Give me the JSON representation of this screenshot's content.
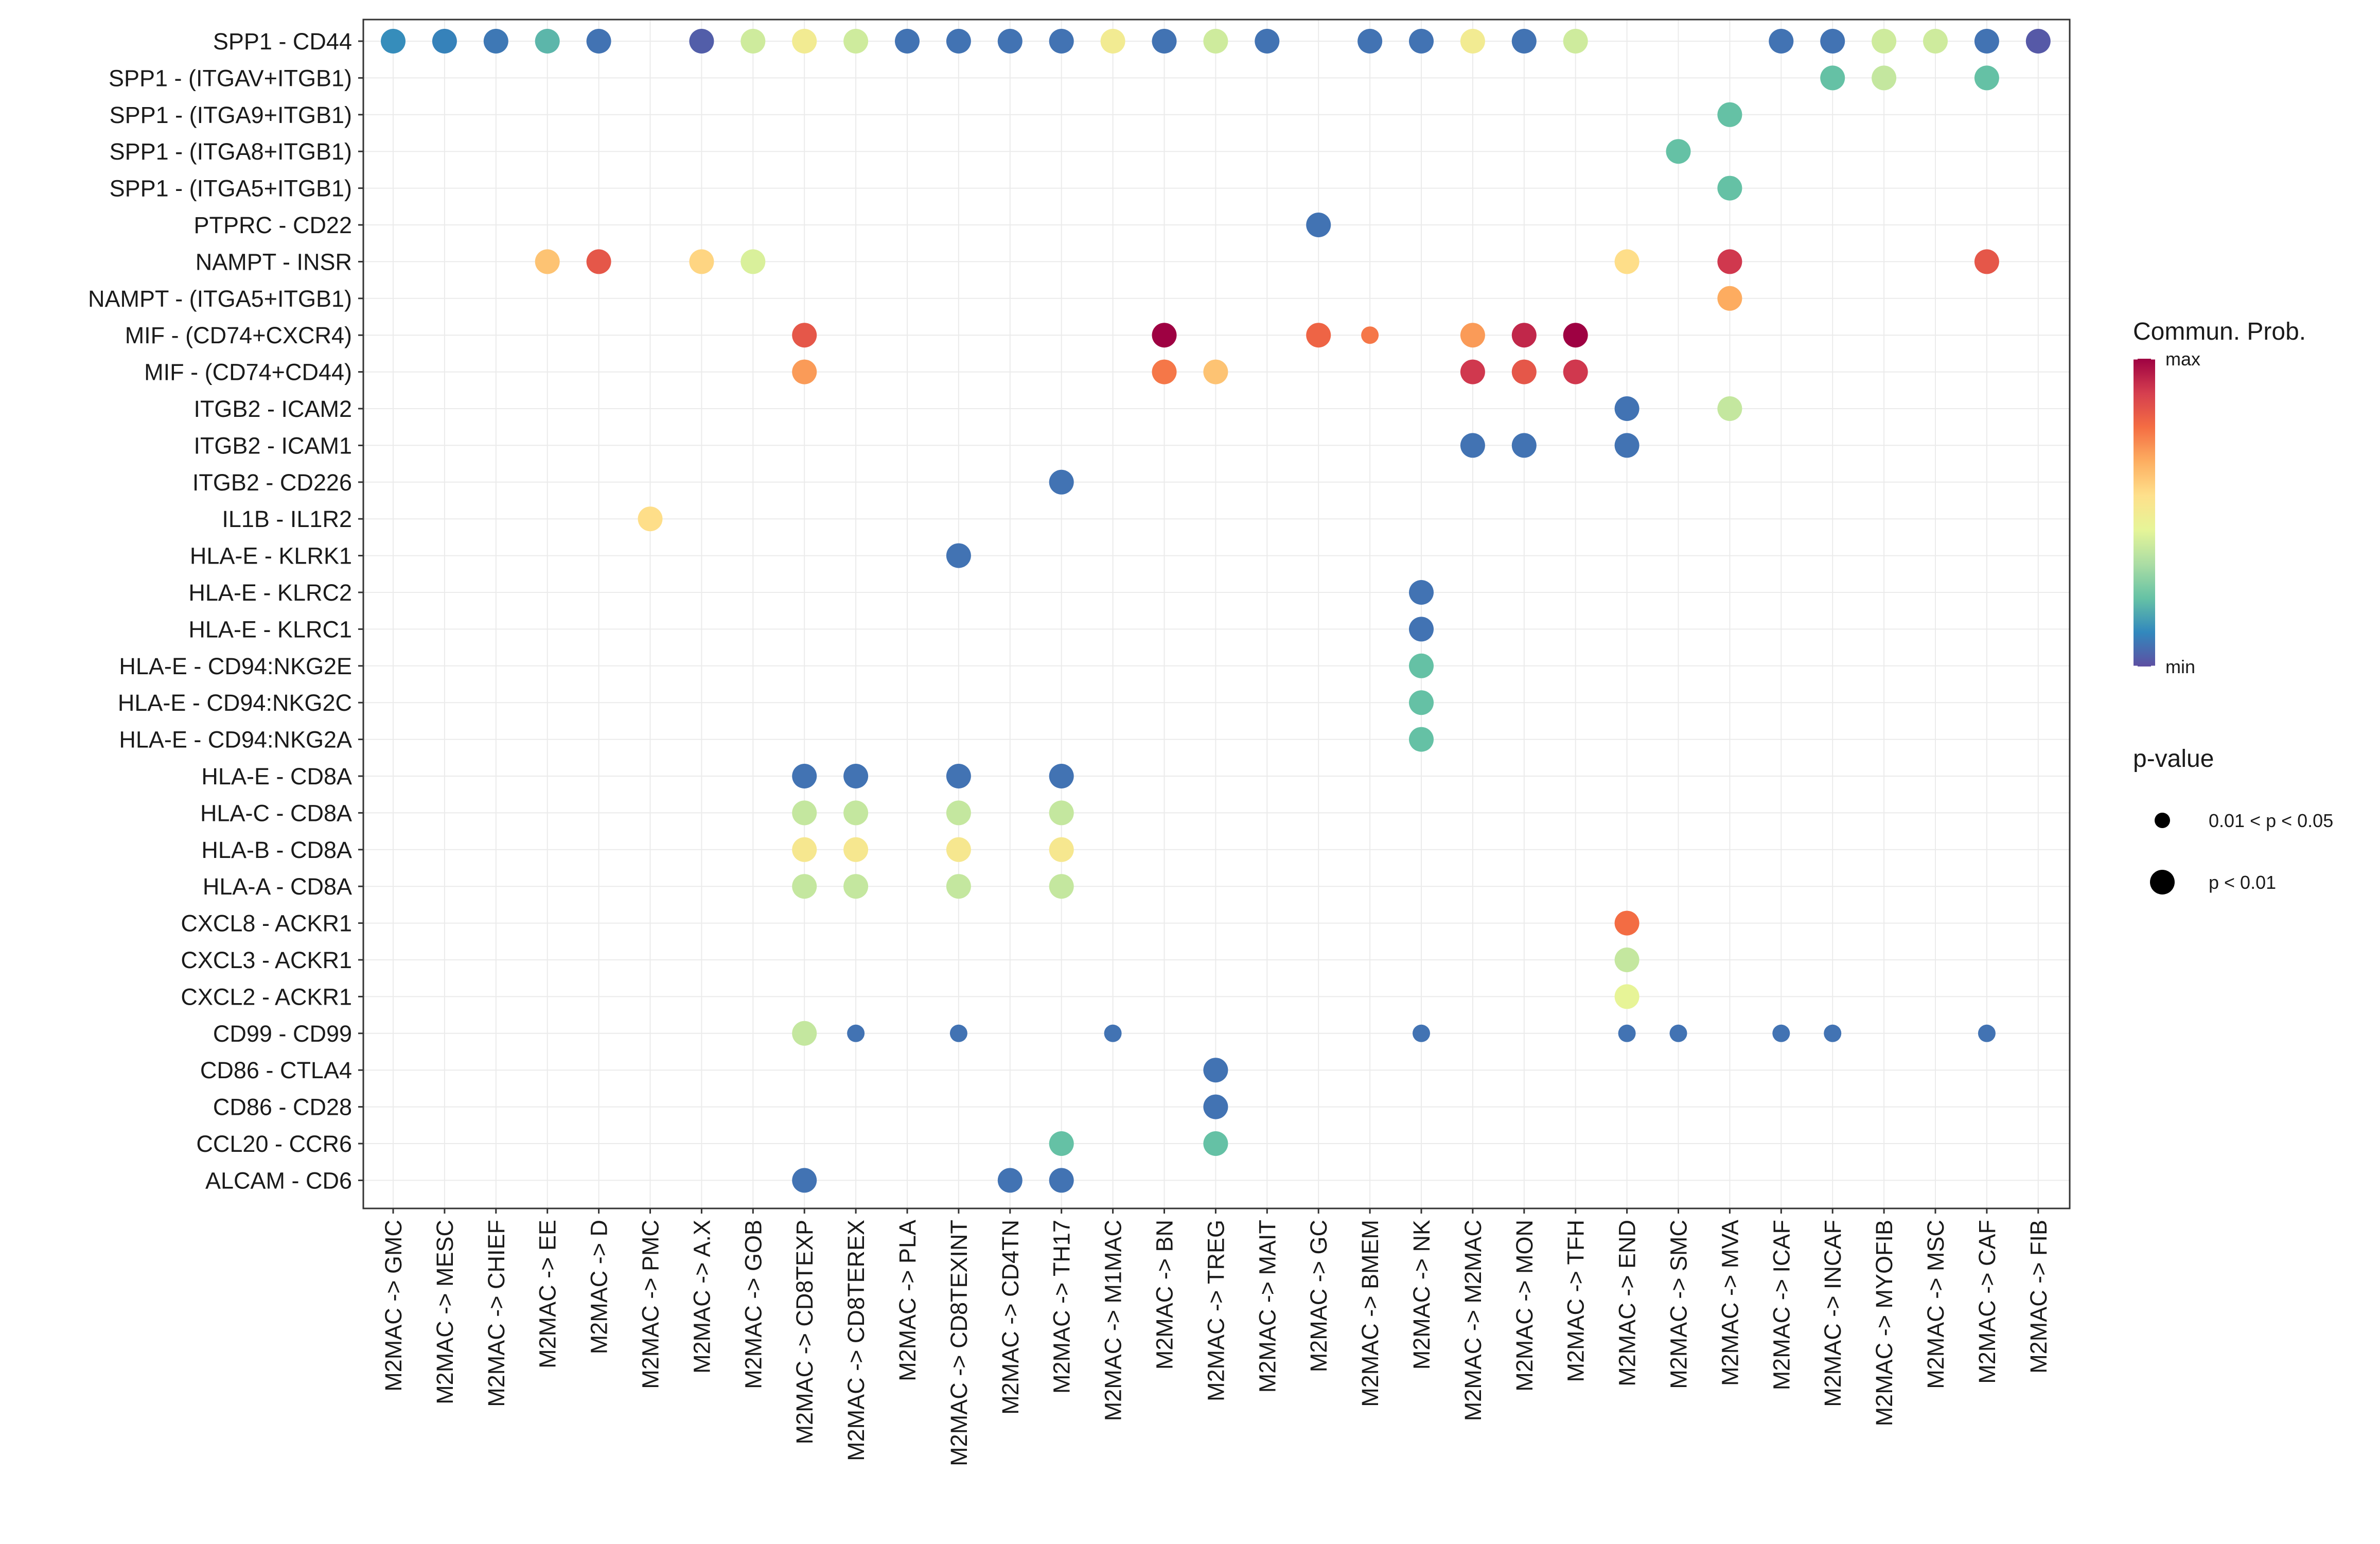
{
  "chart_data": {
    "type": "dot",
    "rows": [
      "SPP1 - CD44",
      "SPP1 - (ITGAV+ITGB1)",
      "SPP1 - (ITGA9+ITGB1)",
      "SPP1 - (ITGA8+ITGB1)",
      "SPP1 - (ITGA5+ITGB1)",
      "PTPRC - CD22",
      "NAMPT - INSR",
      "NAMPT - (ITGA5+ITGB1)",
      "MIF - (CD74+CXCR4)",
      "MIF - (CD74+CD44)",
      "ITGB2 - ICAM2",
      "ITGB2 - ICAM1",
      "ITGB2 - CD226",
      "IL1B - IL1R2",
      "HLA-E - KLRK1",
      "HLA-E - KLRC2",
      "HLA-E - KLRC1",
      "HLA-E - CD94:NKG2E",
      "HLA-E - CD94:NKG2C",
      "HLA-E - CD94:NKG2A",
      "HLA-E - CD8A",
      "HLA-C - CD8A",
      "HLA-B - CD8A",
      "HLA-A - CD8A",
      "CXCL8 - ACKR1",
      "CXCL3 - ACKR1",
      "CXCL2 - ACKR1",
      "CD99 - CD99",
      "CD86 - CTLA4",
      "CD86 - CD28",
      "CCL20 - CCR6",
      "ALCAM - CD6"
    ],
    "columns": [
      "M2MAC -> GMC",
      "M2MAC -> MESC",
      "M2MAC -> CHIEF",
      "M2MAC -> EE",
      "M2MAC -> D",
      "M2MAC -> PMC",
      "M2MAC -> A.X",
      "M2MAC -> GOB",
      "M2MAC -> CD8TEXP",
      "M2MAC -> CD8TEREX",
      "M2MAC -> PLA",
      "M2MAC -> CD8TEXINT",
      "M2MAC -> CD4TN",
      "M2MAC -> TH17",
      "M2MAC -> M1MAC",
      "M2MAC -> BN",
      "M2MAC -> TREG",
      "M2MAC -> MAIT",
      "M2MAC -> GC",
      "M2MAC -> BMEM",
      "M2MAC -> NK",
      "M2MAC -> M2MAC",
      "M2MAC -> MON",
      "M2MAC -> TFH",
      "M2MAC -> END",
      "M2MAC -> SMC",
      "M2MAC -> MVA",
      "M2MAC -> ICAF",
      "M2MAC -> INCAF",
      "M2MAC -> MYOFIB",
      "M2MAC -> MSC",
      "M2MAC -> CAF",
      "M2MAC -> FIB"
    ],
    "value_scale": "normalized communication probability, 0 = min, 1 = max",
    "pvalue_codes": {
      "1": "0.01 < p < 0.05",
      "2": "p < 0.01"
    },
    "points": [
      [
        0,
        0,
        0.12,
        2
      ],
      [
        0,
        1,
        0.1,
        2
      ],
      [
        0,
        2,
        0.08,
        2
      ],
      [
        0,
        3,
        0.2,
        2
      ],
      [
        0,
        4,
        0.07,
        2
      ],
      [
        0,
        6,
        0.03,
        2
      ],
      [
        0,
        7,
        0.4,
        2
      ],
      [
        0,
        8,
        0.5,
        2
      ],
      [
        0,
        9,
        0.4,
        2
      ],
      [
        0,
        10,
        0.07,
        2
      ],
      [
        0,
        11,
        0.07,
        2
      ],
      [
        0,
        12,
        0.07,
        2
      ],
      [
        0,
        13,
        0.07,
        2
      ],
      [
        0,
        14,
        0.5,
        2
      ],
      [
        0,
        15,
        0.07,
        2
      ],
      [
        0,
        16,
        0.4,
        2
      ],
      [
        0,
        17,
        0.07,
        2
      ],
      [
        0,
        19,
        0.07,
        2
      ],
      [
        0,
        20,
        0.07,
        2
      ],
      [
        0,
        21,
        0.5,
        2
      ],
      [
        0,
        22,
        0.07,
        2
      ],
      [
        0,
        23,
        0.4,
        2
      ],
      [
        0,
        27,
        0.07,
        2
      ],
      [
        0,
        28,
        0.07,
        2
      ],
      [
        0,
        29,
        0.4,
        2
      ],
      [
        0,
        30,
        0.4,
        2
      ],
      [
        0,
        31,
        0.07,
        2
      ],
      [
        0,
        32,
        0.02,
        2
      ],
      [
        1,
        28,
        0.22,
        2
      ],
      [
        1,
        29,
        0.38,
        2
      ],
      [
        1,
        31,
        0.22,
        2
      ],
      [
        2,
        26,
        0.22,
        2
      ],
      [
        3,
        25,
        0.22,
        2
      ],
      [
        4,
        26,
        0.22,
        2
      ],
      [
        5,
        18,
        0.07,
        2
      ],
      [
        6,
        3,
        0.62,
        2
      ],
      [
        6,
        4,
        0.83,
        2
      ],
      [
        6,
        6,
        0.58,
        2
      ],
      [
        6,
        7,
        0.42,
        2
      ],
      [
        6,
        24,
        0.56,
        2
      ],
      [
        6,
        26,
        0.9,
        2
      ],
      [
        6,
        31,
        0.83,
        2
      ],
      [
        7,
        26,
        0.67,
        2
      ],
      [
        8,
        8,
        0.83,
        2
      ],
      [
        8,
        15,
        1.0,
        2
      ],
      [
        8,
        18,
        0.8,
        2
      ],
      [
        8,
        19,
        0.76,
        1
      ],
      [
        8,
        21,
        0.7,
        2
      ],
      [
        8,
        22,
        0.93,
        2
      ],
      [
        8,
        23,
        1.0,
        2
      ],
      [
        9,
        8,
        0.7,
        2
      ],
      [
        9,
        15,
        0.76,
        2
      ],
      [
        9,
        16,
        0.62,
        2
      ],
      [
        9,
        21,
        0.9,
        2
      ],
      [
        9,
        22,
        0.83,
        2
      ],
      [
        9,
        23,
        0.9,
        2
      ],
      [
        10,
        24,
        0.07,
        2
      ],
      [
        10,
        26,
        0.38,
        2
      ],
      [
        11,
        21,
        0.07,
        2
      ],
      [
        11,
        22,
        0.07,
        2
      ],
      [
        11,
        24,
        0.07,
        2
      ],
      [
        12,
        13,
        0.07,
        2
      ],
      [
        13,
        5,
        0.56,
        2
      ],
      [
        14,
        11,
        0.07,
        2
      ],
      [
        15,
        20,
        0.07,
        2
      ],
      [
        16,
        20,
        0.07,
        2
      ],
      [
        17,
        20,
        0.22,
        2
      ],
      [
        18,
        20,
        0.22,
        2
      ],
      [
        19,
        20,
        0.22,
        2
      ],
      [
        20,
        8,
        0.07,
        2
      ],
      [
        20,
        9,
        0.07,
        2
      ],
      [
        20,
        11,
        0.07,
        2
      ],
      [
        20,
        13,
        0.07,
        2
      ],
      [
        21,
        8,
        0.38,
        2
      ],
      [
        21,
        9,
        0.38,
        2
      ],
      [
        21,
        11,
        0.38,
        2
      ],
      [
        21,
        13,
        0.38,
        2
      ],
      [
        22,
        8,
        0.52,
        2
      ],
      [
        22,
        9,
        0.52,
        2
      ],
      [
        22,
        11,
        0.52,
        2
      ],
      [
        22,
        13,
        0.52,
        2
      ],
      [
        23,
        8,
        0.38,
        2
      ],
      [
        23,
        9,
        0.38,
        2
      ],
      [
        23,
        11,
        0.38,
        2
      ],
      [
        23,
        13,
        0.38,
        2
      ],
      [
        24,
        24,
        0.78,
        2
      ],
      [
        25,
        24,
        0.38,
        2
      ],
      [
        26,
        24,
        0.45,
        2
      ],
      [
        27,
        8,
        0.38,
        2
      ],
      [
        27,
        9,
        0.07,
        1
      ],
      [
        27,
        11,
        0.07,
        1
      ],
      [
        27,
        14,
        0.07,
        1
      ],
      [
        27,
        20,
        0.07,
        1
      ],
      [
        27,
        24,
        0.07,
        1
      ],
      [
        27,
        25,
        0.07,
        1
      ],
      [
        27,
        27,
        0.07,
        1
      ],
      [
        27,
        28,
        0.07,
        1
      ],
      [
        27,
        31,
        0.07,
        1
      ],
      [
        28,
        16,
        0.07,
        2
      ],
      [
        29,
        16,
        0.07,
        2
      ],
      [
        30,
        13,
        0.22,
        2
      ],
      [
        30,
        16,
        0.22,
        2
      ],
      [
        31,
        8,
        0.07,
        2
      ],
      [
        31,
        12,
        0.07,
        2
      ],
      [
        31,
        13,
        0.07,
        2
      ]
    ],
    "colormap": "Spectral (reversed)",
    "colorbar_stops": [
      "#5e4fa2",
      "#3288bd",
      "#66c2a5",
      "#abdda4",
      "#e6f598",
      "#fee08b",
      "#fdae61",
      "#f46d43",
      "#d53e4f",
      "#9e0142"
    ],
    "legend": {
      "color_title": "Commun. Prob.",
      "color_max_label": "max",
      "color_min_label": "min",
      "size_title": "p-value",
      "size_items": [
        "0.01 < p < 0.05",
        "p < 0.01"
      ]
    }
  }
}
